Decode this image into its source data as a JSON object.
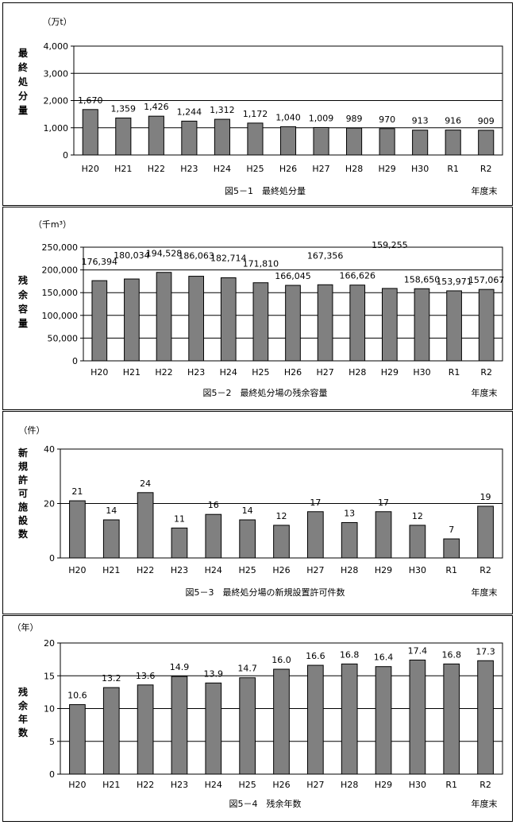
{
  "chart_data": [
    {
      "type": "bar",
      "title": "図5－1　最終処分量",
      "unit_label": "（万t）",
      "ylabel": "最終処分量",
      "xlabel": "年度末",
      "categories": [
        "H20",
        "H21",
        "H22",
        "H23",
        "H24",
        "H25",
        "H26",
        "H27",
        "H28",
        "H29",
        "H30",
        "R1",
        "R2"
      ],
      "values": [
        1670,
        1359,
        1426,
        1244,
        1312,
        1172,
        1040,
        1009,
        989,
        970,
        913,
        916,
        909
      ],
      "value_labels": [
        "1,670",
        "1,359",
        "1,426",
        "1,244",
        "1,312",
        "1,172",
        "1,040",
        "1,009",
        "989",
        "970",
        "913",
        "916",
        "909"
      ],
      "yticks": [
        "0",
        "1,000",
        "2,000",
        "3,000",
        "4,000"
      ],
      "ylim": [
        0,
        4000
      ],
      "grid": true,
      "bar_color": "#808080"
    },
    {
      "type": "bar",
      "title": "図5－2　最終処分場の残余容量",
      "unit_label": "（千m³）",
      "ylabel": "残余容量",
      "xlabel": "年度末",
      "categories": [
        "H20",
        "H21",
        "H22",
        "H23",
        "H24",
        "H25",
        "H26",
        "H27",
        "H28",
        "H29",
        "H30",
        "R1",
        "R2"
      ],
      "values": [
        176394,
        180034,
        194528,
        186063,
        182714,
        171810,
        166045,
        167356,
        166626,
        159255,
        158650,
        153971,
        157067
      ],
      "value_labels": [
        "176,394",
        "180,034",
        "194,528",
        "186,063",
        "182,714",
        "171,810",
        "166,045",
        "167,356",
        "166,626",
        "159,255",
        "158,650",
        "153,971",
        "157,067"
      ],
      "yticks": [
        "0",
        "50,000",
        "100,000",
        "150,000",
        "200,000",
        "250,000"
      ],
      "ylim": [
        0,
        250000
      ],
      "grid": true,
      "bar_color": "#808080"
    },
    {
      "type": "bar",
      "title": "図5－3　最終処分場の新規設置許可件数",
      "unit_label": "（件）",
      "ylabel": "新規許可施設数",
      "xlabel": "年度末",
      "categories": [
        "H20",
        "H21",
        "H22",
        "H23",
        "H24",
        "H25",
        "H26",
        "H27",
        "H28",
        "H29",
        "H30",
        "R1",
        "R2"
      ],
      "values": [
        21,
        14,
        24,
        11,
        16,
        14,
        12,
        17,
        13,
        17,
        12,
        7,
        19
      ],
      "value_labels": [
        "21",
        "14",
        "24",
        "11",
        "16",
        "14",
        "12",
        "17",
        "13",
        "17",
        "12",
        "7",
        "19"
      ],
      "yticks": [
        "0",
        "20",
        "40"
      ],
      "ylim": [
        0,
        40
      ],
      "grid": true,
      "bar_color": "#808080"
    },
    {
      "type": "bar",
      "title": "図5－4　残余年数",
      "unit_label": "（年）",
      "ylabel": "残余年数",
      "xlabel": "年度末",
      "categories": [
        "H20",
        "H21",
        "H22",
        "H23",
        "H24",
        "H25",
        "H26",
        "H27",
        "H28",
        "H29",
        "H30",
        "R1",
        "R2"
      ],
      "values": [
        10.6,
        13.2,
        13.6,
        14.9,
        13.9,
        14.7,
        16.0,
        16.6,
        16.8,
        16.4,
        17.4,
        16.8,
        17.3
      ],
      "value_labels": [
        "10.6",
        "13.2",
        "13.6",
        "14.9",
        "13.9",
        "14.7",
        "16.0",
        "16.6",
        "16.8",
        "16.4",
        "17.4",
        "16.8",
        "17.3"
      ],
      "yticks": [
        "0",
        "5",
        "10",
        "15",
        "20"
      ],
      "ylim": [
        0,
        20
      ],
      "grid": true,
      "bar_color": "#808080"
    }
  ]
}
